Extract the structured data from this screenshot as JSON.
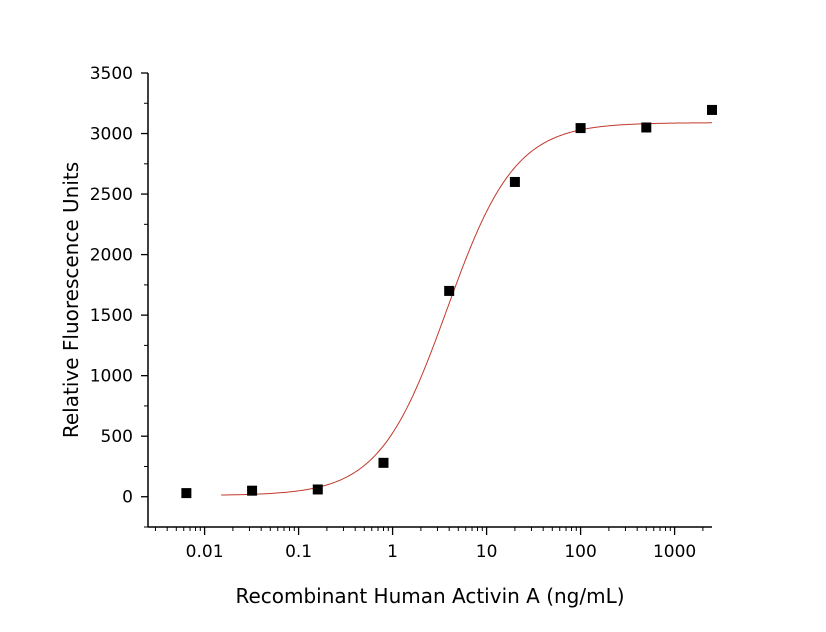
{
  "chart_data": {
    "type": "scatter",
    "xlabel": "Recombinant Human Activin A (ng/mL)",
    "ylabel": "Relative Fluorescence Units",
    "x_scale": "log",
    "xlim": [
      0.0025,
      2500
    ],
    "ylim": [
      -250,
      3500
    ],
    "x_ticks": [
      0.01,
      0.1,
      1,
      10,
      100,
      1000
    ],
    "x_tick_labels": [
      "0.01",
      "0.1",
      "1",
      "10",
      "100",
      "1000"
    ],
    "y_ticks": [
      0,
      500,
      1000,
      1500,
      2000,
      2500,
      3000,
      3500
    ],
    "y_tick_labels": [
      "0",
      "500",
      "1000",
      "1500",
      "2000",
      "2500",
      "3000",
      "3500"
    ],
    "grid": false,
    "series": [
      {
        "type": "scatter",
        "marker": "square",
        "color": "#000000",
        "x": [
          0.0064,
          0.032,
          0.16,
          0.8,
          4,
          20,
          100,
          500,
          2500
        ],
        "y": [
          30,
          50,
          60,
          280,
          1700,
          2600,
          3045,
          3050,
          3195
        ]
      },
      {
        "type": "line",
        "color": "#c0392b",
        "fit": "4PL",
        "params": {
          "bottom": 10,
          "top": 3090,
          "ec50": 3.8,
          "hill": 1.2
        },
        "x_range": [
          0.015,
          2500
        ]
      }
    ]
  }
}
